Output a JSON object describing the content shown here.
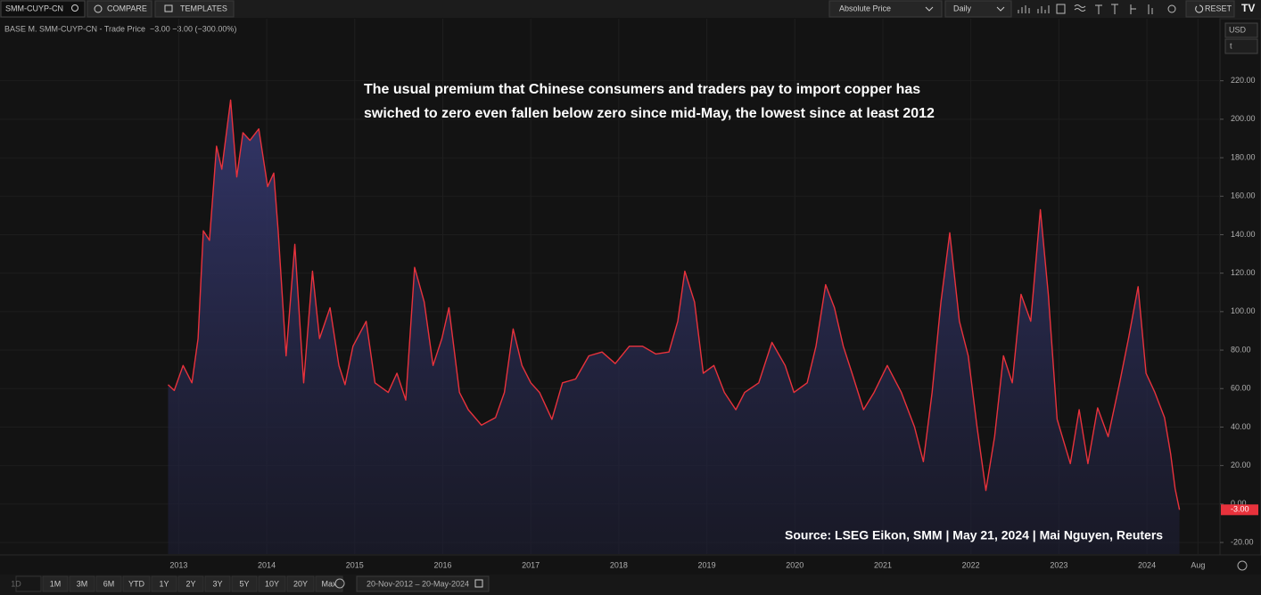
{
  "toolbar": {
    "symbol": "SMM-CUYP-CN",
    "compare": "COMPARE",
    "templates": "TEMPLATES",
    "price_mode": "Absolute Price",
    "interval": "Daily",
    "reset": "RESET"
  },
  "currency": "USD",
  "unit": "t",
  "range_buttons": [
    "1D",
    "1M",
    "3M",
    "6M",
    "YTD",
    "1Y",
    "2Y",
    "3Y",
    "5Y",
    "10Y",
    "20Y",
    "Max"
  ],
  "date_range": "20-Nov-2012 – 20-May-2024",
  "chart_data": {
    "type": "area",
    "legend_title": "BASE M. SMM-CUYP-CN - Trade Price",
    "legend_change": "−3.00 −3.00 (−300.00%)",
    "annotation": [
      "The usual premium that Chinese consumers and traders pay to import copper has",
      "swiched to zero even fallen below zero since mid-May, the lowest since at least 2012"
    ],
    "source": "Source: LSEG Eikon, SMM | May 21, 2024 | Mai Nguyen, Reuters",
    "xlim": [
      2010.97,
      2024.83
    ],
    "xticks": [
      2013,
      2014,
      2015,
      2016,
      2017,
      2018,
      2019,
      2020,
      2021,
      2022,
      2023,
      2024,
      {
        "value": 2024.58,
        "label": "Aug"
      }
    ],
    "ylim": [
      -26,
      243
    ],
    "yticks": [
      {
        "value": -20,
        "label": "-20.00"
      },
      {
        "value": 0,
        "label": "0.00"
      },
      {
        "value": 20,
        "label": "20.00"
      },
      {
        "value": 40,
        "label": "40.00"
      },
      {
        "value": 60,
        "label": "60.00"
      },
      {
        "value": 80,
        "label": "80.00"
      },
      {
        "value": 100,
        "label": "100.00"
      },
      {
        "value": 120,
        "label": "120.00"
      },
      {
        "value": 140,
        "label": "140.00"
      },
      {
        "value": 160,
        "label": "160.00"
      },
      {
        "value": 180,
        "label": "180.00"
      },
      {
        "value": 200,
        "label": "200.00"
      },
      {
        "value": 220,
        "label": "220.00"
      }
    ],
    "grid": true,
    "x": [
      2012.88,
      2012.95,
      2013.05,
      2013.15,
      2013.22,
      2013.28,
      2013.35,
      2013.43,
      2013.49,
      2013.59,
      2013.66,
      2013.73,
      2013.81,
      2013.91,
      2014.01,
      2014.08,
      2014.13,
      2014.22,
      2014.32,
      2014.42,
      2014.52,
      2014.6,
      2014.72,
      2014.82,
      2014.89,
      2014.98,
      2015.13,
      2015.23,
      2015.38,
      2015.48,
      2015.58,
      2015.68,
      2015.79,
      2015.89,
      2015.99,
      2016.07,
      2016.19,
      2016.29,
      2016.44,
      2016.6,
      2016.7,
      2016.8,
      2016.9,
      2017.0,
      2017.1,
      2017.24,
      2017.36,
      2017.51,
      2017.66,
      2017.81,
      2017.96,
      2018.12,
      2018.27,
      2018.42,
      2018.57,
      2018.67,
      2018.75,
      2018.86,
      2018.96,
      2019.08,
      2019.2,
      2019.33,
      2019.43,
      2019.59,
      2019.74,
      2019.89,
      2019.99,
      2020.14,
      2020.24,
      2020.35,
      2020.45,
      2020.55,
      2020.65,
      2020.78,
      2020.9,
      2021.05,
      2021.21,
      2021.36,
      2021.46,
      2021.56,
      2021.66,
      2021.76,
      2021.87,
      2021.97,
      2022.07,
      2022.17,
      2022.27,
      2022.37,
      2022.47,
      2022.57,
      2022.68,
      2022.79,
      2022.88,
      2022.98,
      2023.13,
      2023.23,
      2023.33,
      2023.44,
      2023.56,
      2023.69,
      2023.79,
      2023.9,
      2023.99,
      2024.09,
      2024.2,
      2024.27,
      2024.32,
      2024.37
    ],
    "series": [
      {
        "name": "SMM-CUYP-CN",
        "color": "#e8323c",
        "values": [
          62,
          59,
          72,
          63,
          86,
          142,
          137,
          186,
          174,
          210,
          170,
          193,
          189,
          195,
          165,
          172,
          142,
          77,
          135,
          63,
          121,
          86,
          102,
          72,
          62,
          82,
          95,
          63,
          58,
          68,
          54,
          123,
          105,
          72,
          86,
          102,
          58,
          49,
          41,
          45,
          58,
          91,
          72,
          63,
          58,
          44,
          63,
          65,
          77,
          79,
          73,
          82,
          82,
          78,
          79,
          95,
          121,
          105,
          68,
          72,
          58,
          49,
          58,
          63,
          84,
          72,
          58,
          63,
          82,
          114,
          102,
          82,
          68,
          49,
          58,
          72,
          58,
          40,
          22,
          58,
          105,
          141,
          95,
          77,
          40,
          7,
          35,
          77,
          63,
          109,
          95,
          153,
          109,
          44,
          21,
          49,
          21,
          50,
          35,
          63,
          86,
          113,
          68,
          58,
          45,
          26,
          8,
          -3
        ],
        "last_price": {
          "value": -3,
          "label": "-3.00"
        }
      }
    ]
  }
}
